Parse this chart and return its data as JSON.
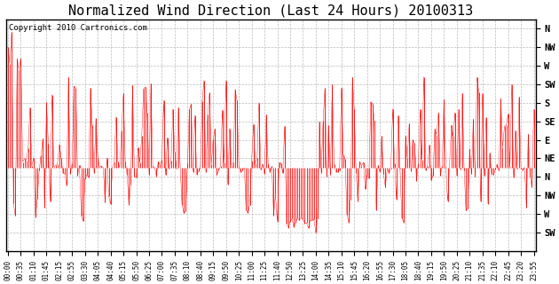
{
  "title": "Normalized Wind Direction (Last 24 Hours) 20100313",
  "copyright": "Copyright 2010 Cartronics.com",
  "line_color": "#ff0000",
  "bg_color": "#ffffff",
  "plot_bg_color": "#ffffff",
  "grid_color": "#bbbbbb",
  "title_fontsize": 11,
  "ytick_labels": [
    "N",
    "NW",
    "W",
    "SW",
    "S",
    "SE",
    "E",
    "NE",
    "N",
    "NW",
    "W",
    "SW"
  ],
  "ytick_values": [
    12,
    11,
    10,
    9,
    8,
    7,
    6,
    5,
    4,
    3,
    2,
    1
  ],
  "ylim": [
    0.0,
    12.5
  ],
  "baseline": 4.5
}
